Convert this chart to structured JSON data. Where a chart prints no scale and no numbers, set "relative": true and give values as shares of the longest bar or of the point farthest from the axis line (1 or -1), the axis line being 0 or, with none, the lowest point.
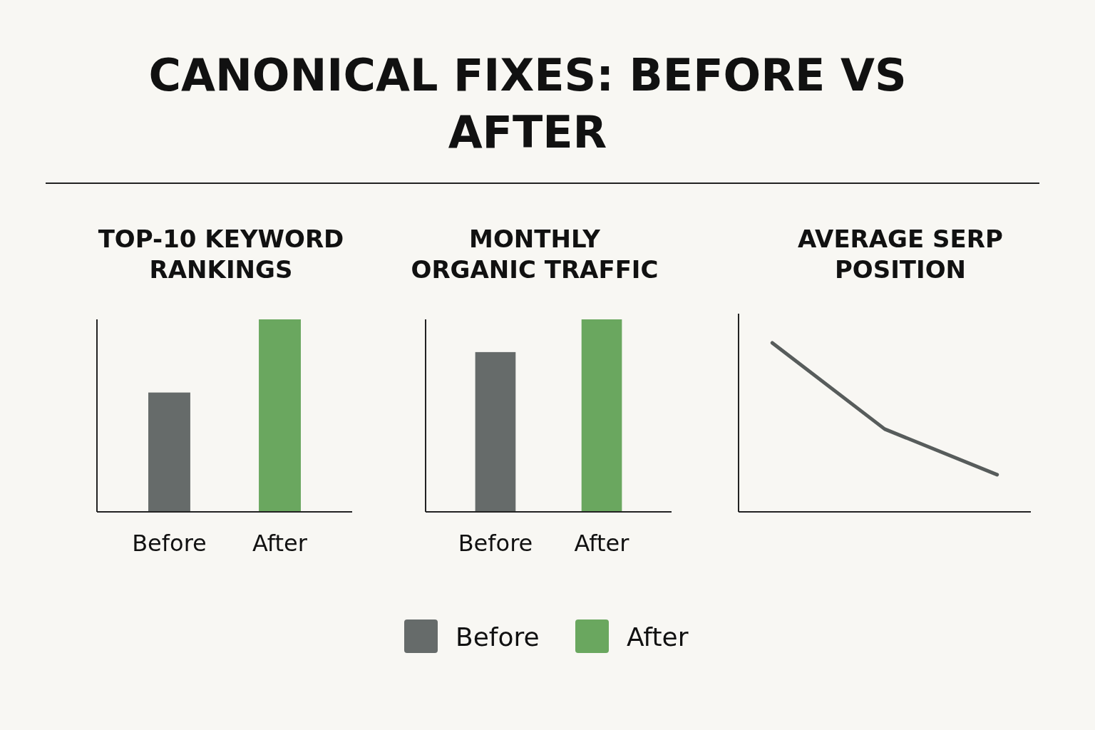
{
  "chart_data": [
    {
      "type": "other",
      "title": "CANONICAL FIXES: BEFORE VS AFTER"
    },
    {
      "type": "bar",
      "title": "TOP-10 KEYWORD RANKINGS",
      "categories": [
        "Before",
        "After"
      ],
      "relative": true,
      "legend": "bottom",
      "series": [
        {
          "name": "Before",
          "color": "#666b6a",
          "values": [
            0.62,
            null
          ]
        },
        {
          "name": "After",
          "color": "#6aa75f",
          "values": [
            null,
            1
          ]
        }
      ]
    },
    {
      "type": "bar",
      "title": "MONTHLY ORGANIC TRAFFIC",
      "categories": [
        "Before",
        "After"
      ],
      "relative": true,
      "series": [
        {
          "color": "#666b6a",
          "values": [
            0.83,
            null
          ]
        },
        {
          "color": "#6aa75f",
          "values": [
            null,
            1
          ]
        }
      ]
    },
    {
      "type": "line",
      "title": "AVERAGE SERP POSITION",
      "categories": [
        null,
        null,
        null
      ],
      "values": [
        1,
        0.49,
        0.22
      ],
      "color": "#575c5b",
      "relative": true
    }
  ]
}
